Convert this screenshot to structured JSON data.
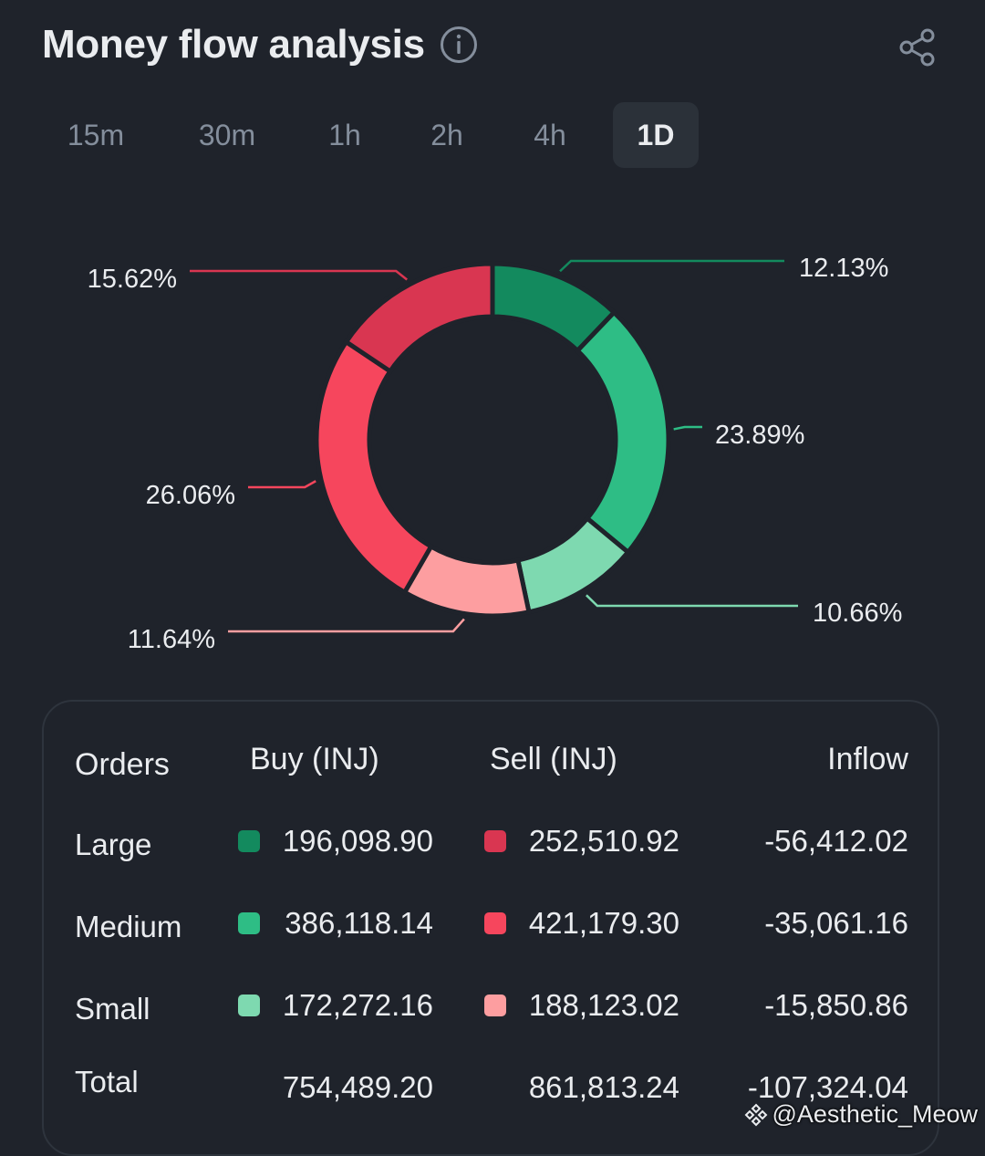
{
  "header": {
    "title": "Money flow analysis"
  },
  "tabs": [
    {
      "label": "15m",
      "active": false
    },
    {
      "label": "30m",
      "active": false
    },
    {
      "label": "1h",
      "active": false
    },
    {
      "label": "2h",
      "active": false
    },
    {
      "label": "4h",
      "active": false
    },
    {
      "label": "1D",
      "active": true
    }
  ],
  "chart_data": {
    "type": "pie",
    "title": "Money flow analysis",
    "slices": [
      {
        "name": "Large Buy",
        "value": 12.13,
        "label": "12.13%",
        "color": "#138a5e"
      },
      {
        "name": "Medium Buy",
        "value": 23.89,
        "label": "23.89%",
        "color": "#2ebd85"
      },
      {
        "name": "Small Buy",
        "value": 10.66,
        "label": "10.66%",
        "color": "#7ed9b0"
      },
      {
        "name": "Small Sell",
        "value": 11.64,
        "label": "11.64%",
        "color": "#fd9ea0"
      },
      {
        "name": "Medium Sell",
        "value": 26.06,
        "label": "26.06%",
        "color": "#f6465d"
      },
      {
        "name": "Large Sell",
        "value": 15.62,
        "label": "15.62%",
        "color": "#d93651"
      }
    ]
  },
  "table": {
    "headers": {
      "orders": "Orders",
      "buy": "Buy (INJ)",
      "sell": "Sell (INJ)",
      "inflow": "Inflow"
    },
    "rows": [
      {
        "order": "Large",
        "buy": "196,098.90",
        "sell": "252,510.92",
        "inflow": "-56,412.02",
        "buy_color": "#138a5e",
        "sell_color": "#d93651"
      },
      {
        "order": "Medium",
        "buy": "386,118.14",
        "sell": "421,179.30",
        "inflow": "-35,061.16",
        "buy_color": "#2ebd85",
        "sell_color": "#f6465d"
      },
      {
        "order": "Small",
        "buy": "172,272.16",
        "sell": "188,123.02",
        "inflow": "-15,850.86",
        "buy_color": "#7ed9b0",
        "sell_color": "#fd9ea0"
      }
    ],
    "total": {
      "order": "Total",
      "buy": "754,489.20",
      "sell": "861,813.24",
      "inflow": "-107,324.04"
    }
  },
  "watermark": {
    "text": "@Aesthetic_Meow"
  }
}
